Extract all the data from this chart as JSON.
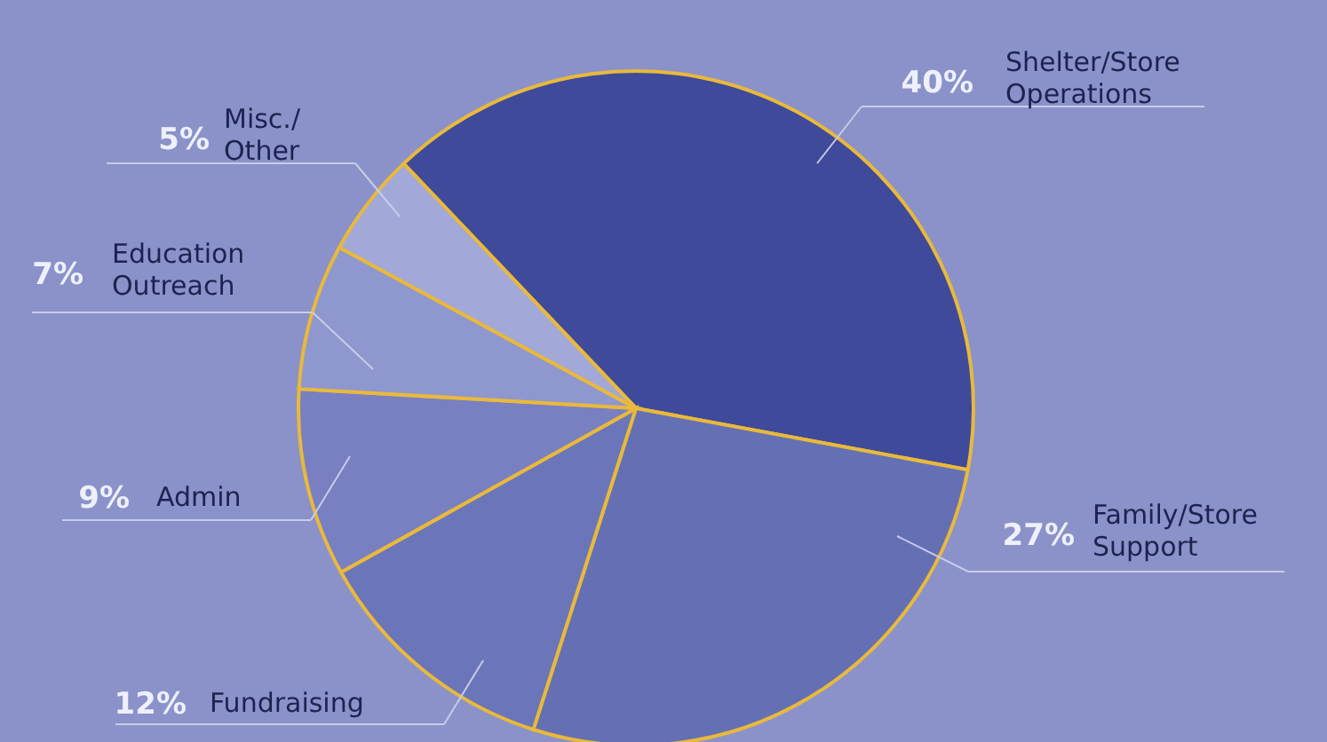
{
  "chart_data": {
    "type": "pie",
    "categories": [
      "Shelter/Store Operations",
      "Family/Store Support",
      "Fundraising",
      "Admin",
      "Education Outreach",
      "Misc./ Other"
    ],
    "values": [
      40,
      27,
      12,
      9,
      7,
      5
    ],
    "value_labels": [
      "40%",
      "27%",
      "12%",
      "9%",
      "7%",
      "5%"
    ],
    "colors": [
      "#3f4a9a",
      "#6570b4",
      "#6b75b9",
      "#7880c2",
      "#8f97cf",
      "#a2a8d8"
    ]
  }
}
